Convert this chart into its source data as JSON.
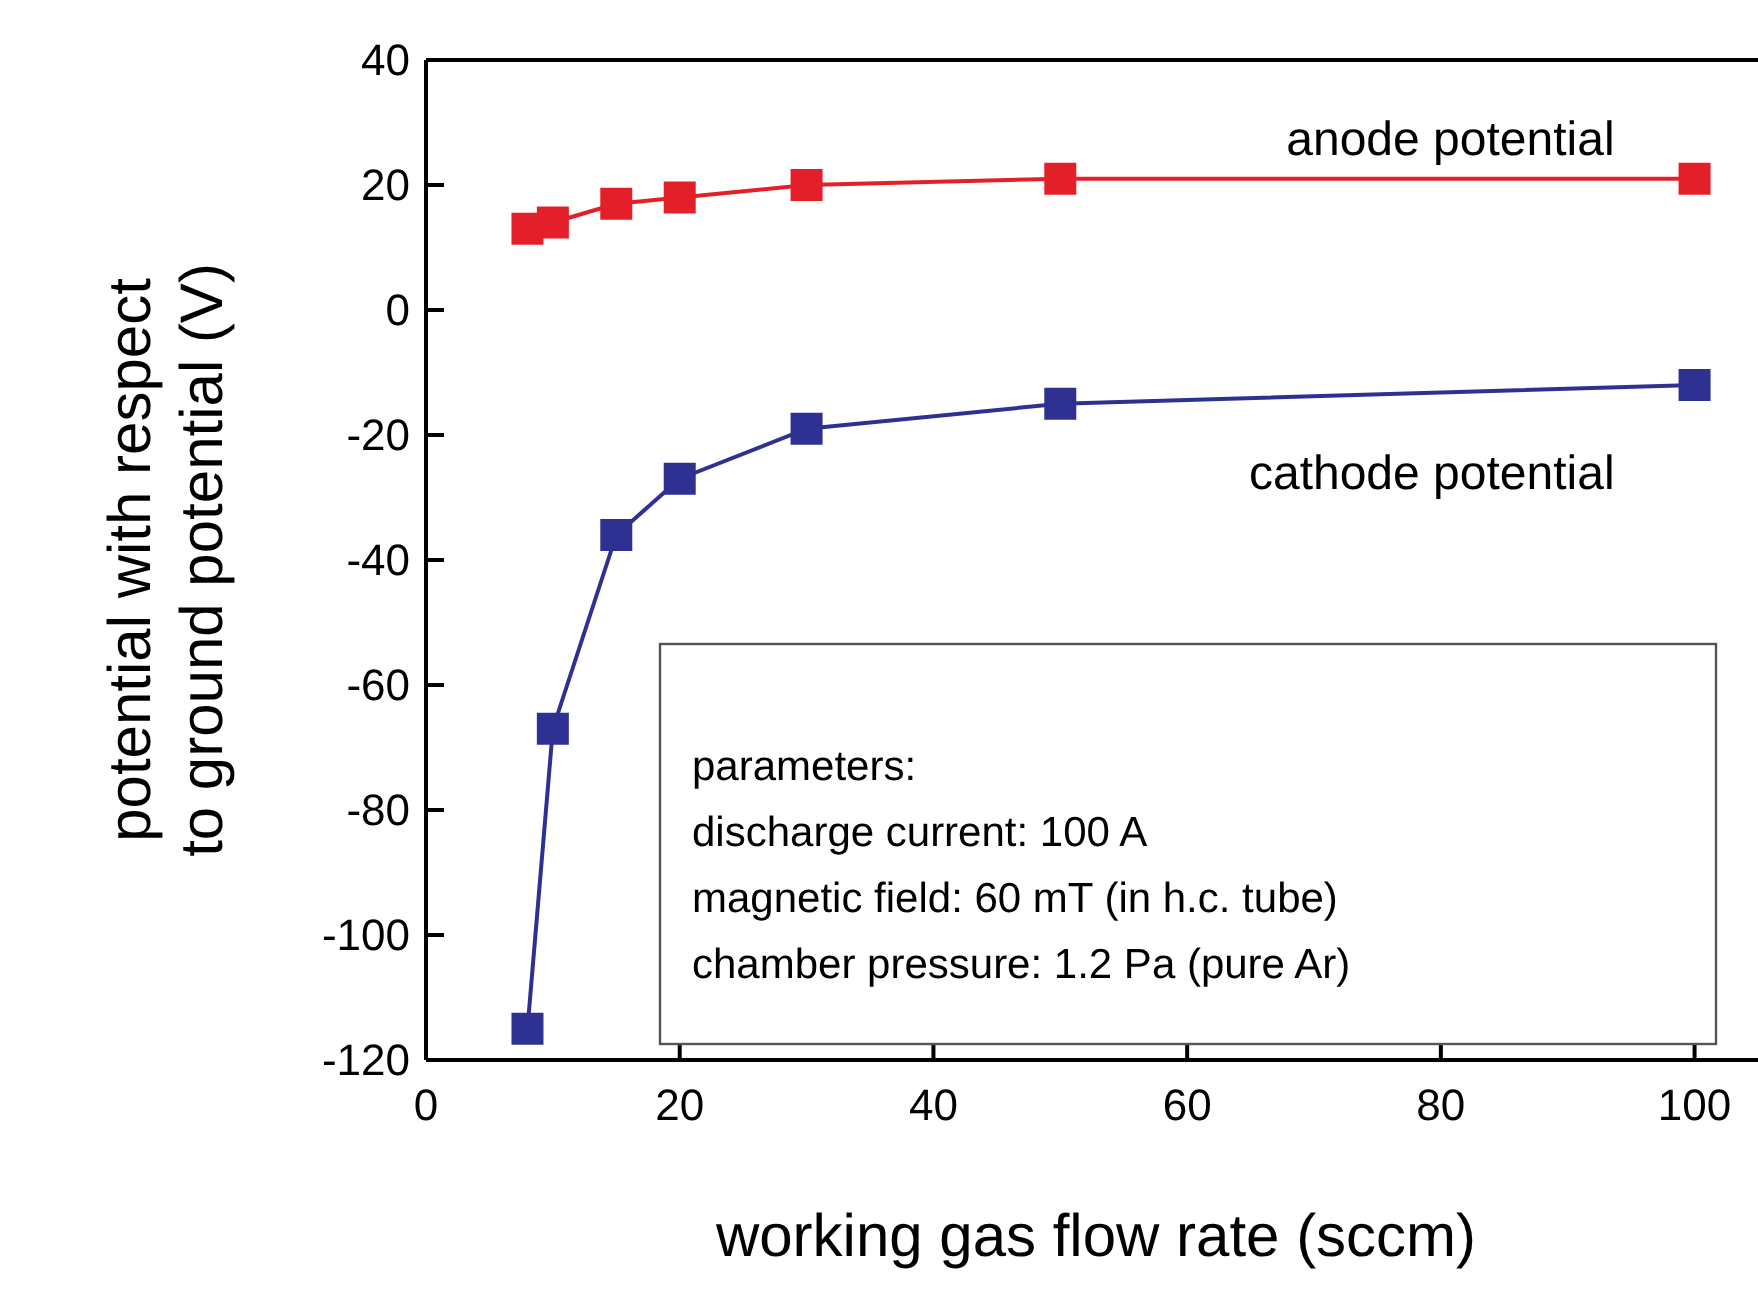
{
  "chart_data": {
    "type": "line",
    "xlabel": "working gas flow rate (sccm)",
    "ylabel": "potential with respect\nto ground potential (V)",
    "x": [
      8,
      10,
      15,
      20,
      30,
      50,
      100
    ],
    "series": [
      {
        "name": "anode potential",
        "color": "#e3202a",
        "values": [
          13,
          14,
          17,
          18,
          20,
          21,
          21
        ]
      },
      {
        "name": "cathode potential",
        "color": "#2e3192",
        "values": [
          -115,
          -67,
          -36,
          -27,
          -19,
          -15,
          -12
        ]
      }
    ],
    "xlim": [
      0,
      105
    ],
    "xticks": [
      0,
      20,
      40,
      60,
      80,
      100
    ],
    "ylim": [
      -120,
      40
    ],
    "yticks": [
      -120,
      -100,
      -80,
      -60,
      -40,
      -20,
      0,
      20,
      40
    ],
    "marker": "square",
    "line_style": "solid",
    "grid": false,
    "annotations": [
      "parameters:",
      "discharge current: 100 A",
      "magnetic field: 60 mT (in h.c. tube)",
      "chamber pressure: 1.2 Pa (pure Ar)"
    ]
  }
}
